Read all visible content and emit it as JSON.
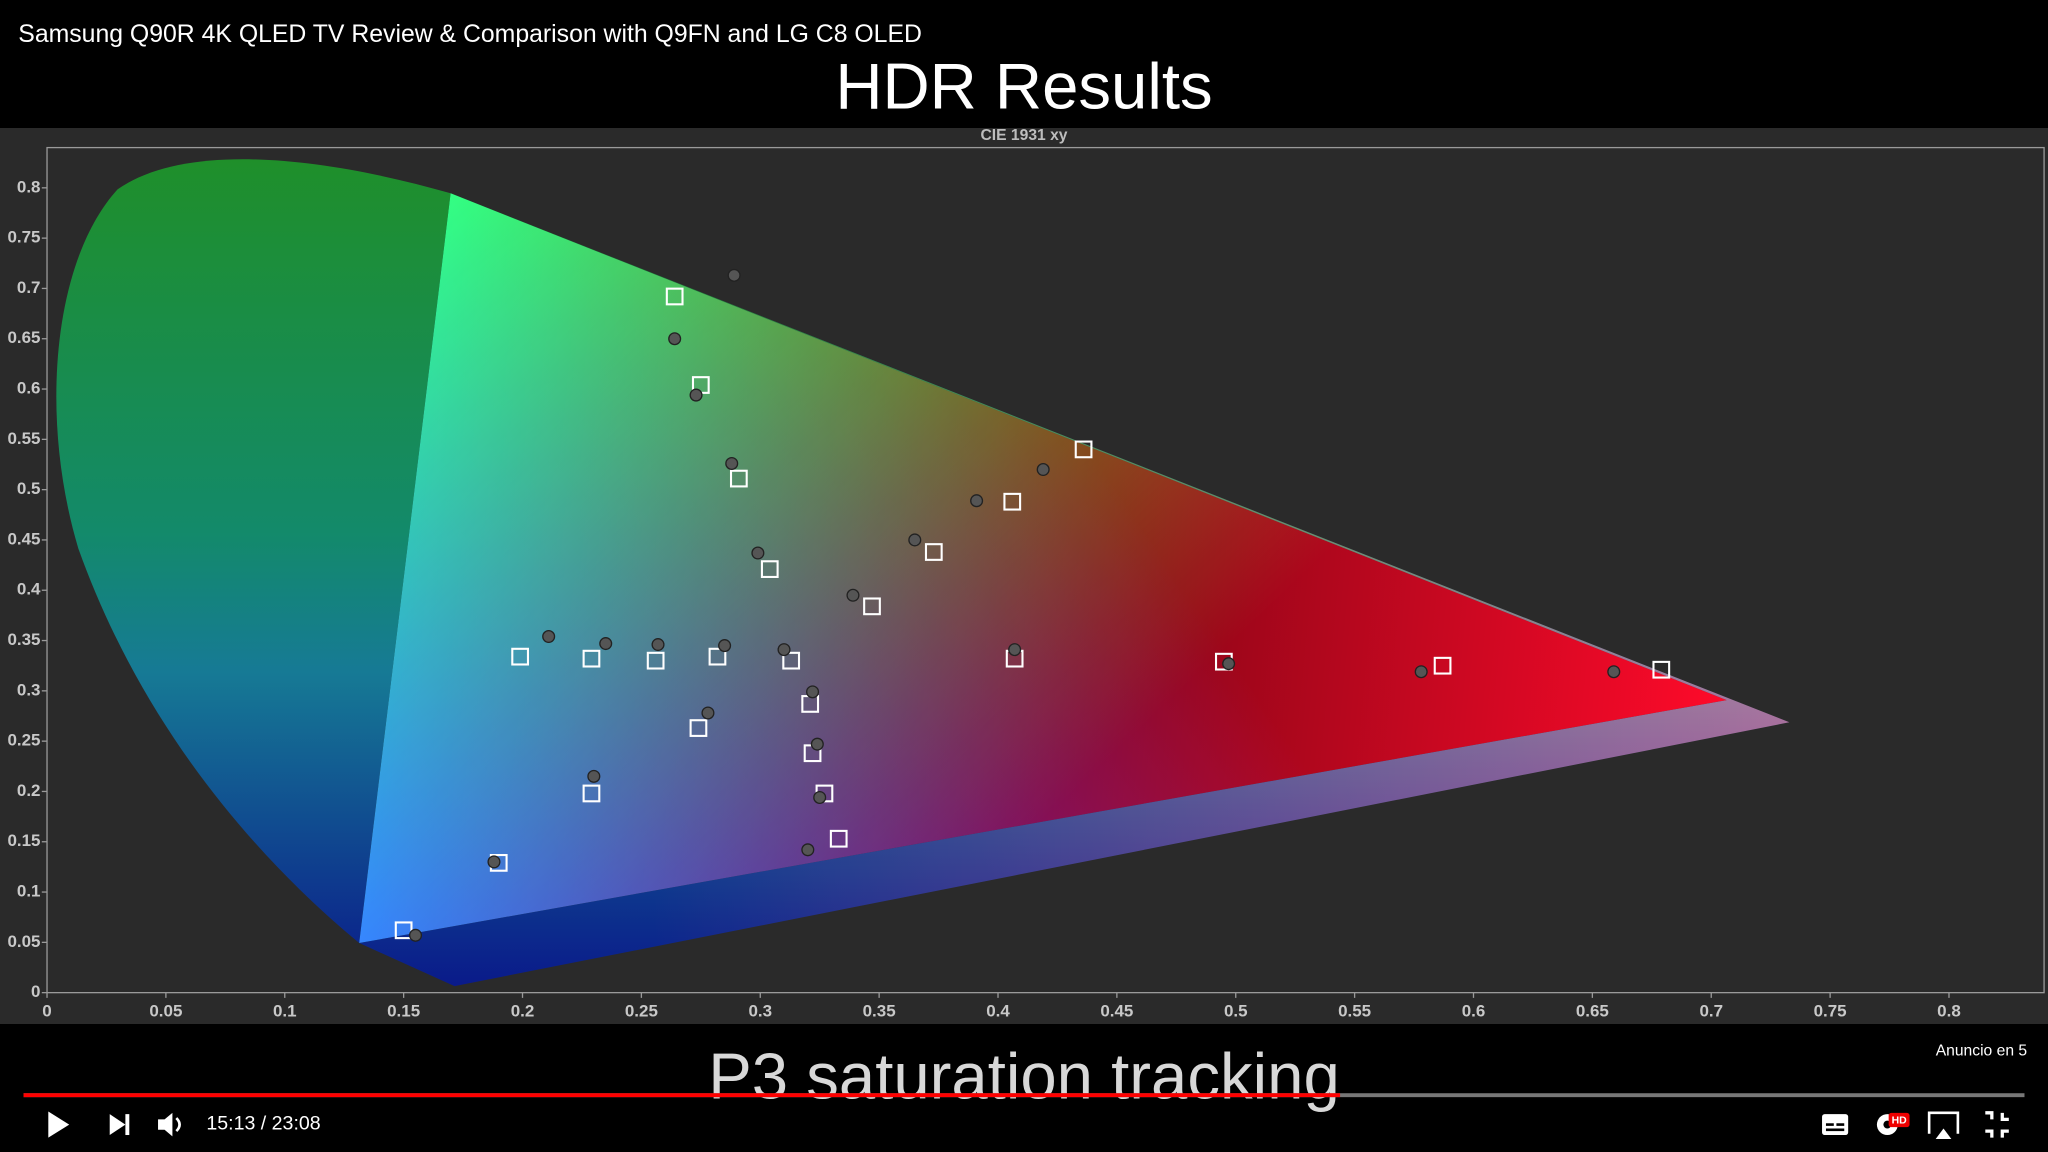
{
  "video": {
    "title": "Samsung Q90R 4K QLED TV Review & Comparison with Q9FN and LG C8 OLED",
    "slide_title": "HDR Results",
    "caption": "P3 saturation tracking",
    "ad_notice": "Anuncio en 5",
    "time": "15:13 / 23:08",
    "quality_badge": "HD"
  },
  "chart_data": {
    "type": "scatter",
    "title": "CIE 1931 xy",
    "xlim": [
      0,
      0.84
    ],
    "ylim": [
      0,
      0.84
    ],
    "xticks": [
      0,
      0.05,
      0.1,
      0.15,
      0.2,
      0.25,
      0.3,
      0.35,
      0.4,
      0.45,
      0.5,
      0.55,
      0.6,
      0.65,
      0.7,
      0.75,
      0.8
    ],
    "yticks": [
      0,
      0.05,
      0.1,
      0.15,
      0.2,
      0.25,
      0.3,
      0.35,
      0.4,
      0.45,
      0.5,
      0.55,
      0.6,
      0.65,
      0.7,
      0.75,
      0.8
    ],
    "series": [
      {
        "marker": "square",
        "color": "#ffffff",
        "x": [
          0.264,
          0.275,
          0.291,
          0.304,
          0.347,
          0.373,
          0.406,
          0.436,
          0.313,
          0.407,
          0.495,
          0.587,
          0.679,
          0.199,
          0.229,
          0.256,
          0.282,
          0.321,
          0.322,
          0.327,
          0.333,
          0.274,
          0.229,
          0.19,
          0.15
        ],
        "y": [
          0.692,
          0.604,
          0.511,
          0.421,
          0.384,
          0.438,
          0.488,
          0.54,
          0.33,
          0.332,
          0.329,
          0.325,
          0.321,
          0.334,
          0.332,
          0.33,
          0.334,
          0.287,
          0.238,
          0.198,
          0.153,
          0.263,
          0.198,
          0.129,
          0.062
        ]
      },
      {
        "marker": "circle",
        "color": "#555555",
        "x": [
          0.289,
          0.264,
          0.273,
          0.288,
          0.299,
          0.339,
          0.365,
          0.391,
          0.419,
          0.31,
          0.407,
          0.497,
          0.578,
          0.659,
          0.211,
          0.235,
          0.257,
          0.285,
          0.322,
          0.324,
          0.325,
          0.32,
          0.278,
          0.23,
          0.188,
          0.155
        ],
        "y": [
          0.713,
          0.65,
          0.594,
          0.526,
          0.437,
          0.395,
          0.45,
          0.489,
          0.52,
          0.341,
          0.341,
          0.327,
          0.319,
          0.319,
          0.354,
          0.347,
          0.346,
          0.345,
          0.299,
          0.247,
          0.194,
          0.142,
          0.278,
          0.215,
          0.13,
          0.057
        ]
      }
    ]
  }
}
